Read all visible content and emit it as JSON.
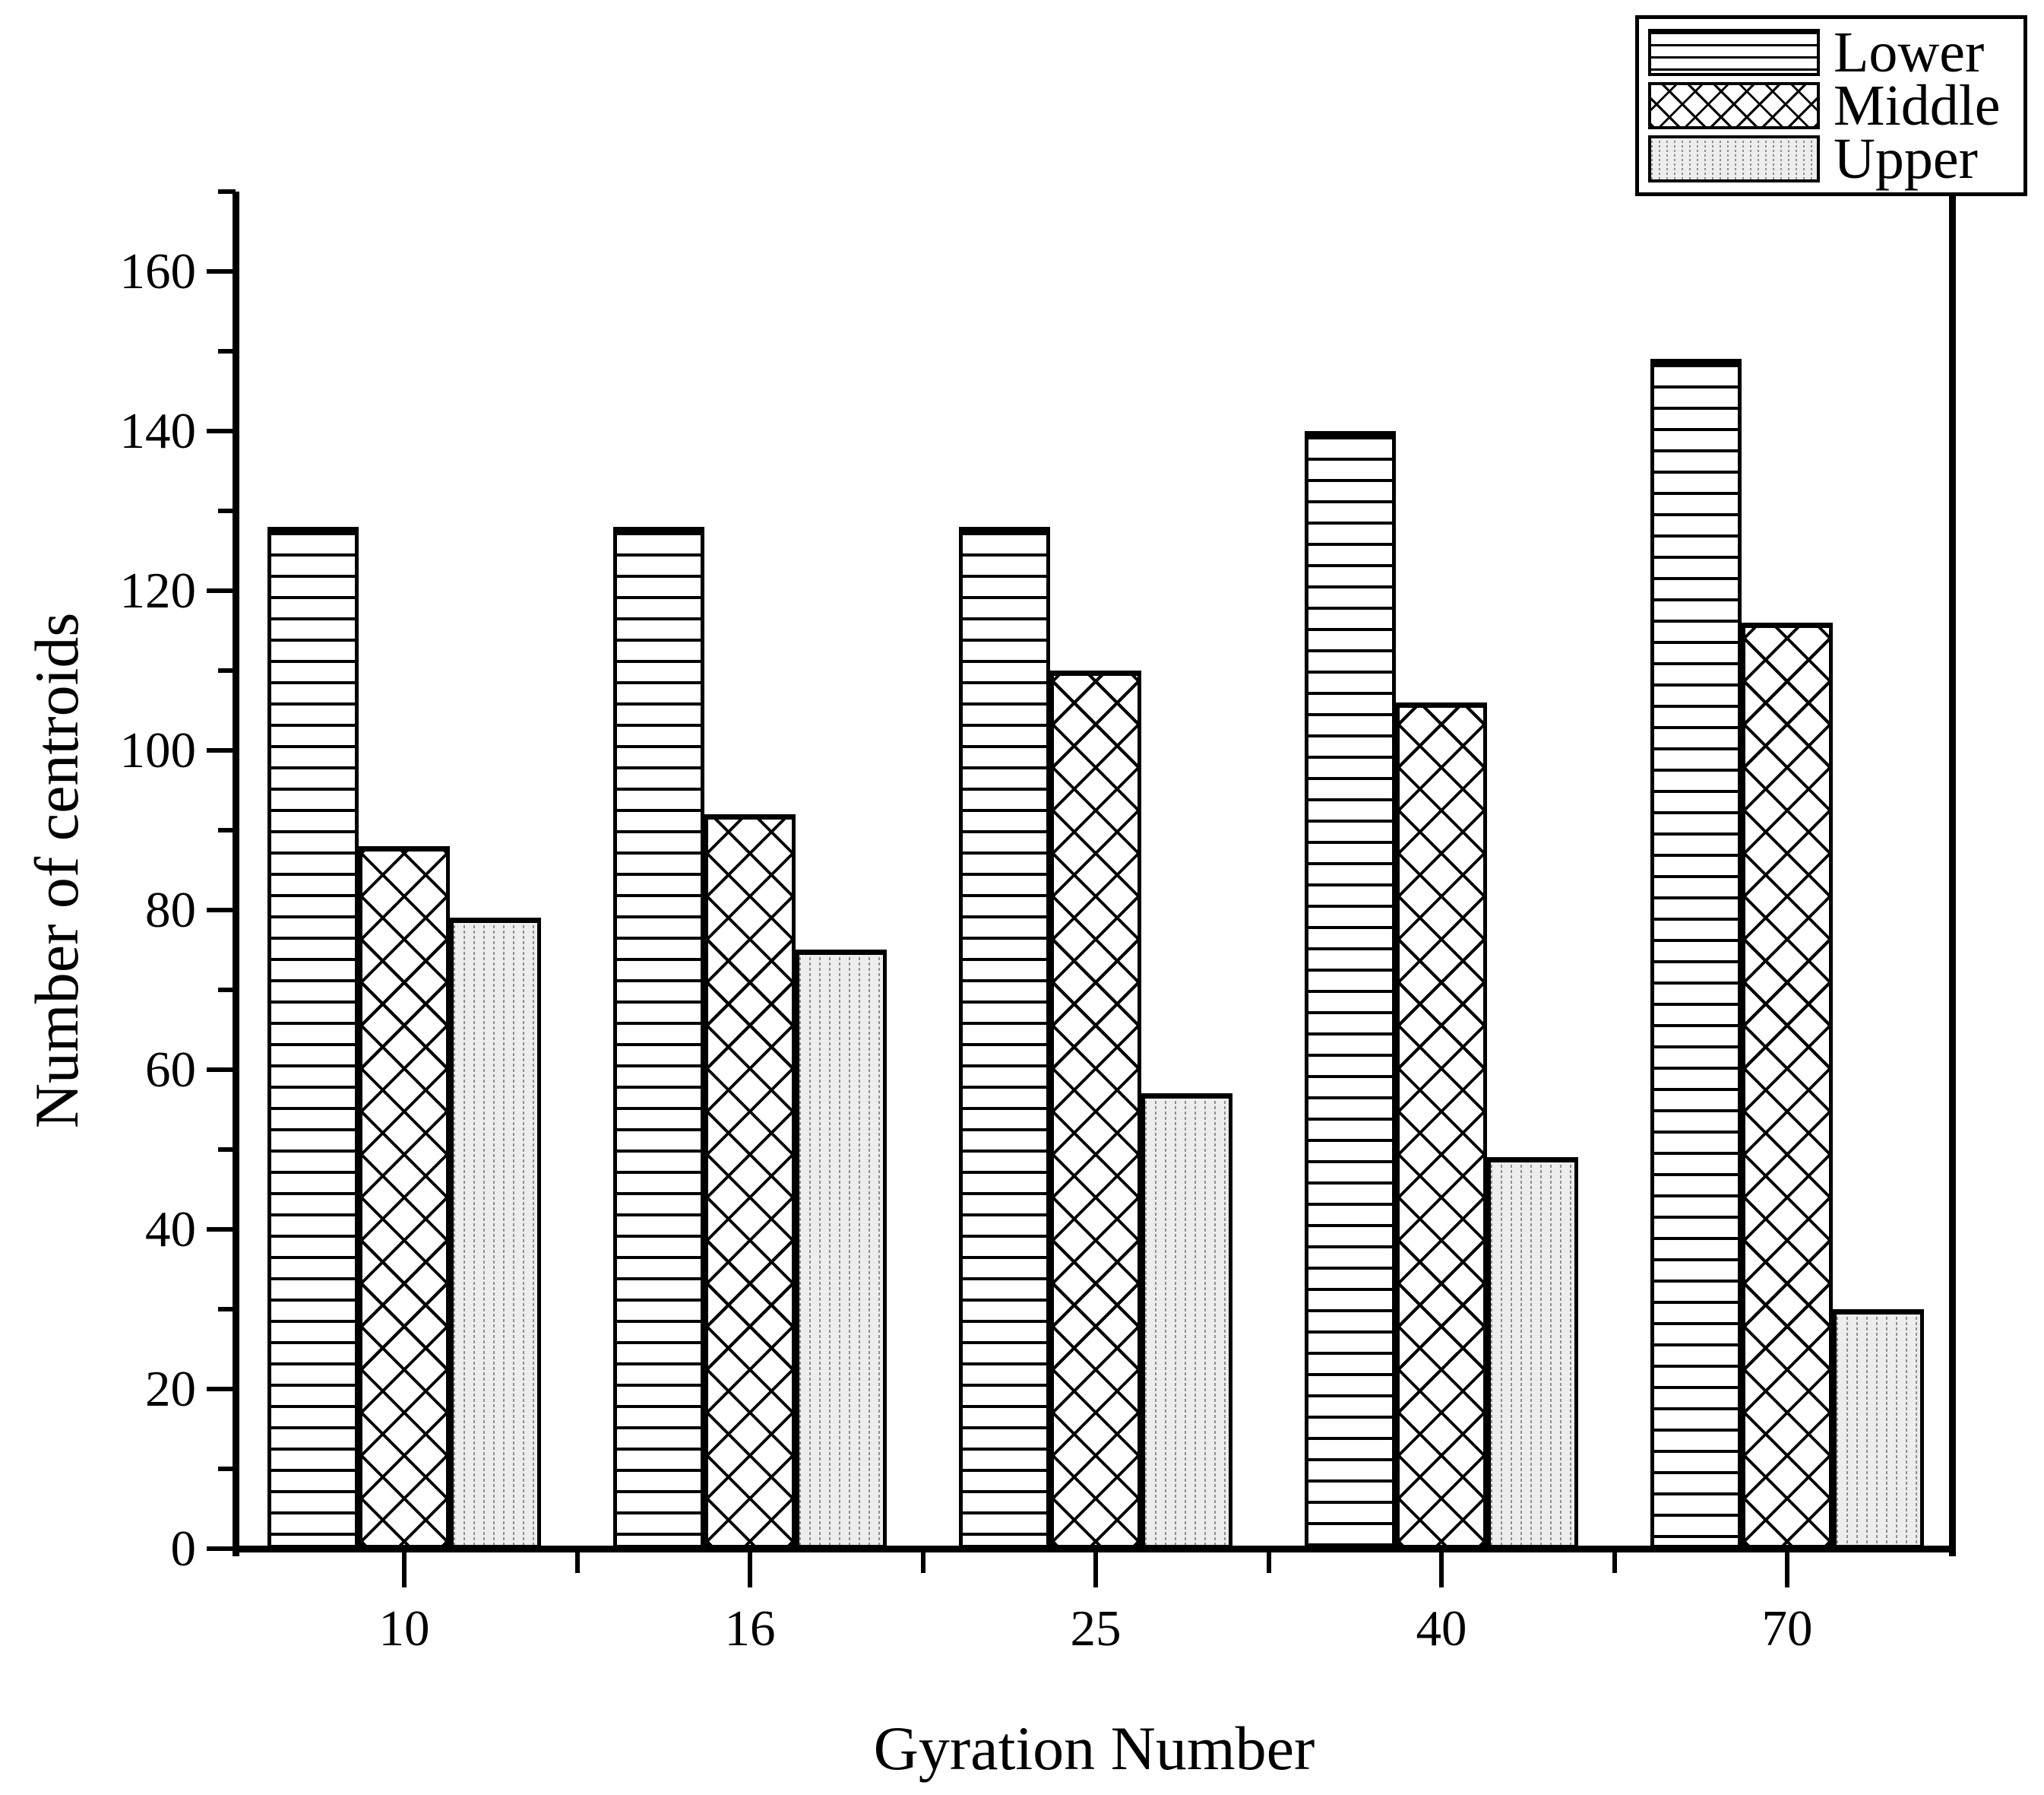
{
  "chart_data": {
    "type": "bar",
    "title": "",
    "xlabel": "Gyration Number",
    "ylabel": "Number of centroids",
    "categories": [
      "10",
      "16",
      "25",
      "40",
      "70"
    ],
    "series": [
      {
        "name": "Lower",
        "pattern": "horizontal-lines",
        "values": [
          128,
          128,
          128,
          140,
          149
        ]
      },
      {
        "name": "Middle",
        "pattern": "crosshatch",
        "values": [
          88,
          92,
          110,
          106,
          116
        ]
      },
      {
        "name": "Upper",
        "pattern": "dotted",
        "values": [
          79,
          75,
          57,
          49,
          30
        ]
      }
    ],
    "ylim": [
      0,
      170
    ],
    "y_major_ticks": [
      0,
      20,
      40,
      60,
      80,
      100,
      120,
      140,
      160
    ],
    "y_minor_tick_step": 10,
    "grid": false,
    "legend_position": "top-right",
    "legend_labels": [
      "Lower",
      "Middle",
      "Upper"
    ],
    "colors": {
      "foreground": "#000000",
      "background": "#ffffff",
      "upper_fill": "#ededed"
    }
  }
}
